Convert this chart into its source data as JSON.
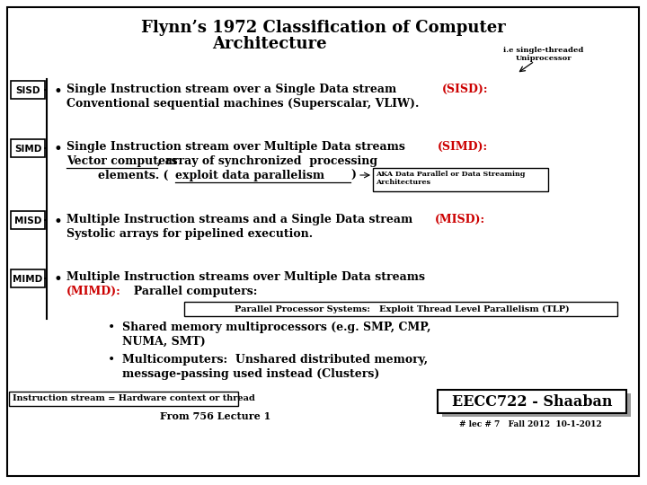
{
  "title_line1": "Flynn’s 1972 Classification of Computer",
  "title_line2": "Architecture",
  "bg_color": "#ffffff",
  "border_color": "#000000",
  "text_color": "#000000",
  "red_color": "#cc0000",
  "labels": [
    "SISD",
    "SIMD",
    "MISD",
    "MIMD"
  ],
  "sisd_red": "(SISD):",
  "sisd_text2": "Conventional sequential machines (Superscalar, VLIW).",
  "simd_red": "(SIMD):",
  "simd_text2_line1a": "Vector computers",
  "simd_text2_line1b": ", array of synchronized  processing",
  "simd_text2_line2a": "        elements. (",
  "simd_text2_line2b": "exploit data parallelism",
  "simd_text2_line2c": ")",
  "simd_note": "AKA Data Parallel or Data Streaming\nArchitectures",
  "misd_red": "(MISD):",
  "misd_text2": "Systolic arrays for pipelined execution.",
  "mimd_text1": "Multiple Instruction streams over Multiple Data streams",
  "mimd_red": "(MIMD):",
  "mimd_text2": "  Parallel computers:",
  "parallel_box": "Parallel Processor Systems:   Exploit Thread Level Parallelism (TLP)",
  "bullet1_line1": "Shared memory multiprocessors (e.g. SMP, CMP,",
  "bullet1_line2": "NUMA, SMT)",
  "bullet2_line1": "Multicomputers:  Unshared distributed memory,",
  "bullet2_line2": "message-passing used instead (Clusters)",
  "footnote_left": "Instruction stream = Hardware context or thread",
  "footnote_center": "From 756 Lecture 1",
  "eecc_text": "EECC722 - Shaaban",
  "bottom_right": "# lec # 7   Fall 2012  10-1-2012",
  "single_threaded_note": "i.e single-threaded\nUniprocessor",
  "font_main": 9.0,
  "font_title": 13.0,
  "lh": 16
}
